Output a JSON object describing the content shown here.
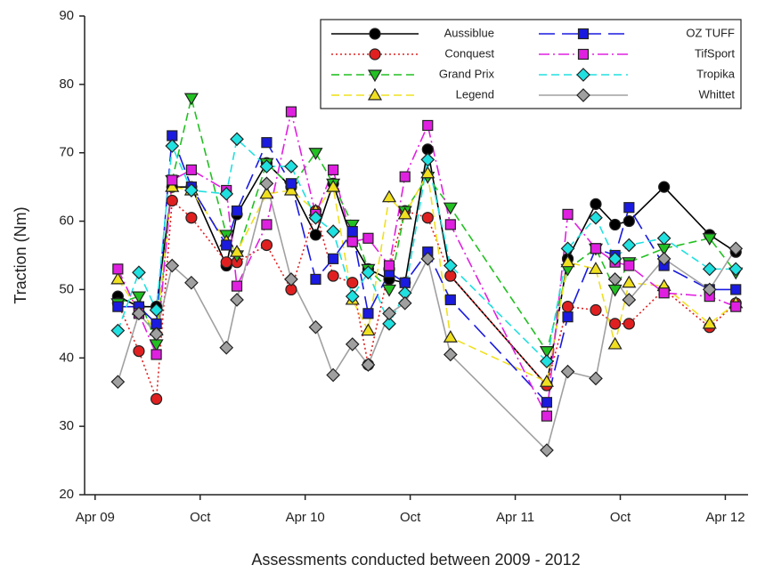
{
  "chart_data": {
    "type": "line",
    "x_label": "Assessments conducted between 2009 - 2012",
    "y_label": "Traction (Nm)",
    "x": [
      1.3,
      2.5,
      3.5,
      4.4,
      5.5,
      7.5,
      8.1,
      9.8,
      11.2,
      12.6,
      13.6,
      14.7,
      15.6,
      16.8,
      17.7,
      19.0,
      20.3,
      25.8,
      27.0,
      28.6,
      29.7,
      30.5,
      32.5,
      35.1,
      36.6
    ],
    "xlim": [
      -0.6,
      37.3
    ],
    "xticks": [
      {
        "value": 0,
        "label": "Apr 09"
      },
      {
        "value": 6,
        "label": "Oct"
      },
      {
        "value": 12,
        "label": "Apr 10"
      },
      {
        "value": 18,
        "label": "Oct"
      },
      {
        "value": 24,
        "label": "Apr 11"
      },
      {
        "value": 30,
        "label": "Oct"
      },
      {
        "value": 36,
        "label": "Apr 12"
      }
    ],
    "ylim": [
      20,
      90
    ],
    "yticks": [
      20,
      30,
      40,
      50,
      60,
      70,
      80,
      90
    ],
    "grid": false,
    "legend": "upper right",
    "series": [
      {
        "name": "Aussiblue",
        "color": "#000000",
        "marker": "circle",
        "dash": "solid",
        "values": [
          49,
          47.5,
          47.5,
          65,
          65,
          53.5,
          61,
          68.5,
          65,
          58,
          65.5,
          57,
          53,
          51.5,
          51,
          70.5,
          52,
          36,
          54.5,
          62.5,
          59.5,
          60,
          65,
          58,
          55.5
        ]
      },
      {
        "name": "Conquest",
        "color": "#e02020",
        "marker": "circle",
        "dash": "dotted",
        "values": [
          48,
          41,
          34,
          63,
          60.5,
          54,
          54,
          56.5,
          50,
          61.5,
          52,
          51,
          39,
          53,
          61.5,
          60.5,
          52,
          36,
          47.5,
          47,
          45,
          45,
          50,
          44.5,
          48
        ]
      },
      {
        "name": "Grand Prix",
        "color": "#22c022",
        "marker": "triangle-down",
        "dash": "dashed",
        "values": [
          48,
          49,
          42,
          66,
          78,
          58,
          55,
          68.5,
          65,
          70,
          65.5,
          59.5,
          53,
          50,
          61.5,
          66.5,
          62,
          41,
          53,
          56,
          50,
          54,
          56,
          57.5,
          52.5
        ]
      },
      {
        "name": "Legend",
        "color": "#f0e020",
        "marker": "triangle-up",
        "dash": "dashed",
        "values": [
          51.5,
          47,
          44,
          65,
          64.5,
          57,
          55.5,
          64,
          64.5,
          61.5,
          65,
          48.5,
          44,
          63.5,
          61,
          67,
          43,
          36.5,
          54,
          53,
          42,
          51,
          50.5,
          45,
          48
        ]
      },
      {
        "name": "OZ TUFF",
        "color": "#1a1ae0",
        "marker": "square",
        "dash": "longdash",
        "values": [
          47.5,
          47.5,
          45,
          72.5,
          65,
          56.5,
          61.5,
          71.5,
          65.5,
          51.5,
          54.5,
          58.5,
          46.5,
          52.5,
          51,
          55.5,
          48.5,
          33.5,
          46,
          56,
          55,
          62,
          53.5,
          50,
          50
        ]
      },
      {
        "name": "TifSport",
        "color": "#e020e0",
        "marker": "square",
        "dash": "dashdot",
        "values": [
          53,
          46.5,
          40.5,
          66,
          67.5,
          64.5,
          50.5,
          59.5,
          76,
          61,
          67.5,
          57,
          57.5,
          53.5,
          66.5,
          74,
          59.5,
          31.5,
          61,
          56,
          54,
          53.5,
          49.5,
          49,
          47.5
        ]
      },
      {
        "name": "Tropika",
        "color": "#20e0e0",
        "marker": "diamond",
        "dash": "dashed",
        "values": [
          44,
          52.5,
          47,
          71,
          64.5,
          64,
          72,
          68,
          68,
          60.5,
          58.5,
          49,
          52.5,
          45,
          49.5,
          69,
          53.5,
          39.5,
          56,
          60.5,
          54.5,
          56.5,
          57.5,
          53,
          53
        ]
      },
      {
        "name": "Whittet",
        "color": "#a0a0a0",
        "marker": "diamond",
        "dash": "solid",
        "values": [
          36.5,
          46.5,
          43.5,
          53.5,
          51,
          41.5,
          48.5,
          65.5,
          51.5,
          44.5,
          37.5,
          42,
          39,
          46.5,
          48,
          54.5,
          40.5,
          26.5,
          38,
          37,
          51.5,
          48.5,
          54.5,
          50,
          56
        ]
      }
    ]
  }
}
